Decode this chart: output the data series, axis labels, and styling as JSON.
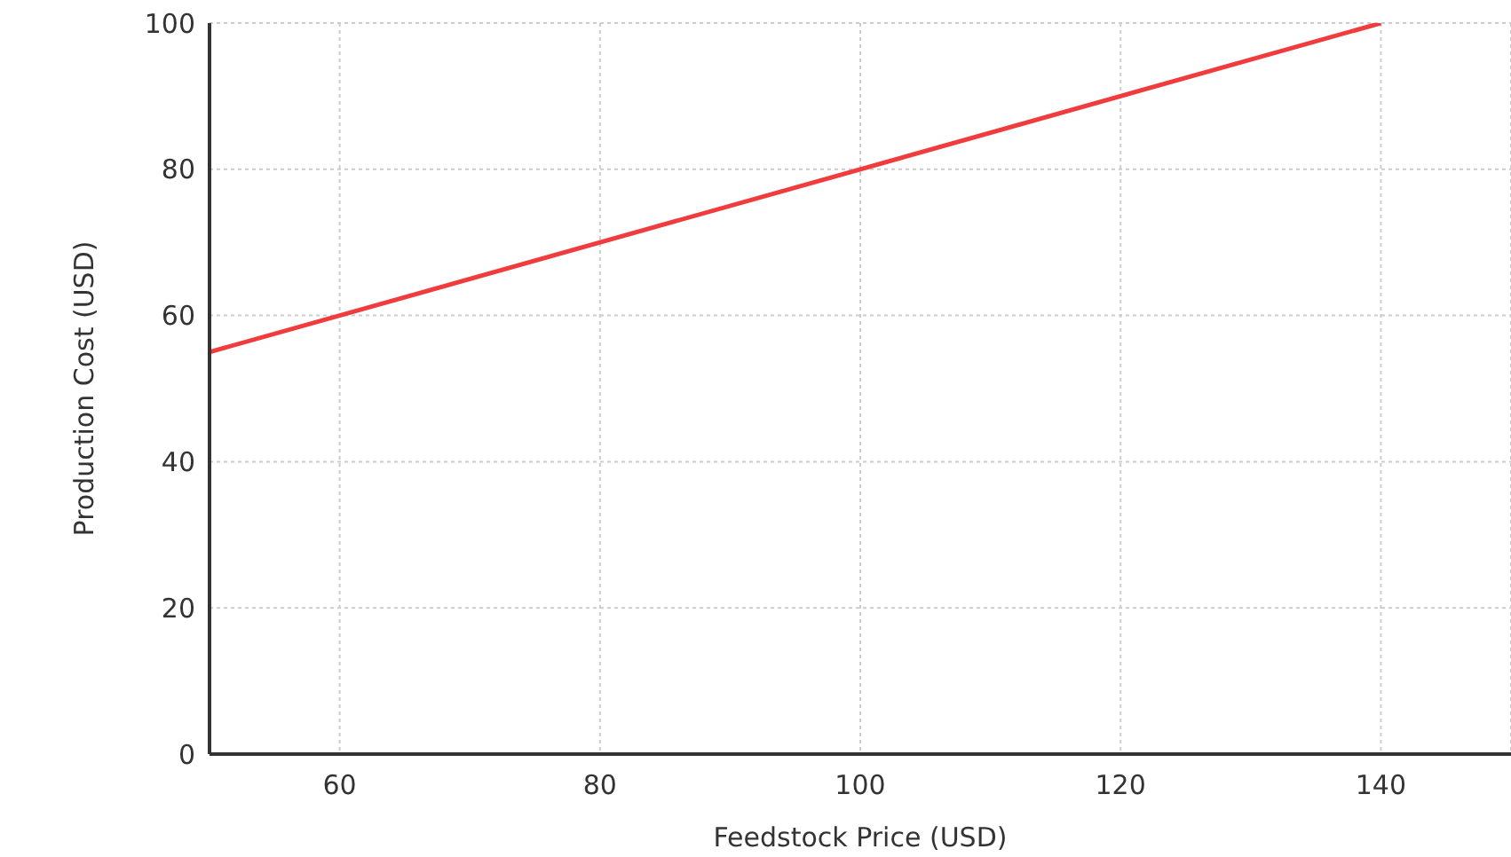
{
  "chart_data": {
    "type": "line",
    "xlabel": "Feedstock Price (USD)",
    "ylabel": "Production Cost (USD)",
    "x": [
      50,
      140
    ],
    "series": [
      {
        "color": "#f03c3c",
        "values": [
          55,
          100
        ]
      }
    ],
    "xlim": [
      50,
      150
    ],
    "xticks": [
      60,
      80,
      100,
      120,
      140
    ],
    "ylim": [
      0,
      100
    ],
    "yticks": [
      0,
      20,
      40,
      60,
      80,
      100
    ],
    "grid": true,
    "marker": "none",
    "line_style": "solid"
  }
}
